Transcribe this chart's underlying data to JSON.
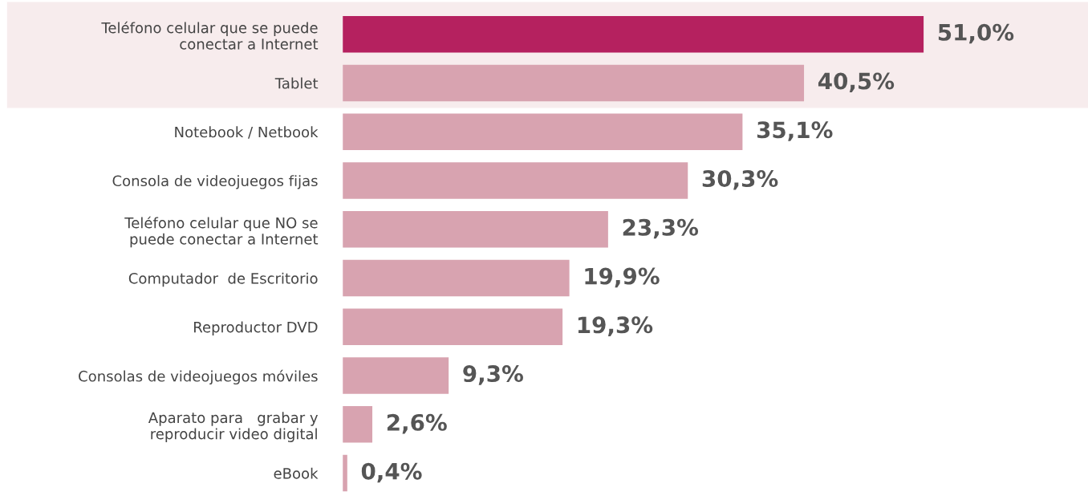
{
  "chart_data": {
    "type": "bar",
    "orientation": "horizontal",
    "categories": [
      "Teléfono celular que se puede\nconectar a Internet",
      "Tablet",
      "Notebook / Netbook",
      "Consola de videojuegos fijas",
      "Teléfono celular que NO se\npuede conectar a Internet",
      "Computador  de Escritorio",
      "Reproductor DVD",
      "Consolas de videojuegos móviles",
      "Aparato para   grabar y\nreproducir video digital",
      "eBook"
    ],
    "values": [
      51.0,
      40.5,
      35.1,
      30.3,
      23.3,
      19.9,
      19.3,
      9.3,
      2.6,
      0.4
    ],
    "value_labels": [
      "51,0%",
      "40,5%",
      "35,1%",
      "30,3%",
      "23,3%",
      "19,9%",
      "19,3%",
      "9,3%",
      "2,6%",
      "0,4%"
    ],
    "colors": [
      "#b5215f",
      "#d8a3b0",
      "#d8a3b0",
      "#d8a3b0",
      "#d8a3b0",
      "#d8a3b0",
      "#d8a3b0",
      "#d8a3b0",
      "#d8a3b0",
      "#d8a3b0"
    ],
    "bands": [
      {
        "axis": "y",
        "from": "Teléfono celular que se puede\nconectar a Internet",
        "to": "Tablet",
        "color": "#f7eced"
      }
    ],
    "grid": false
  }
}
